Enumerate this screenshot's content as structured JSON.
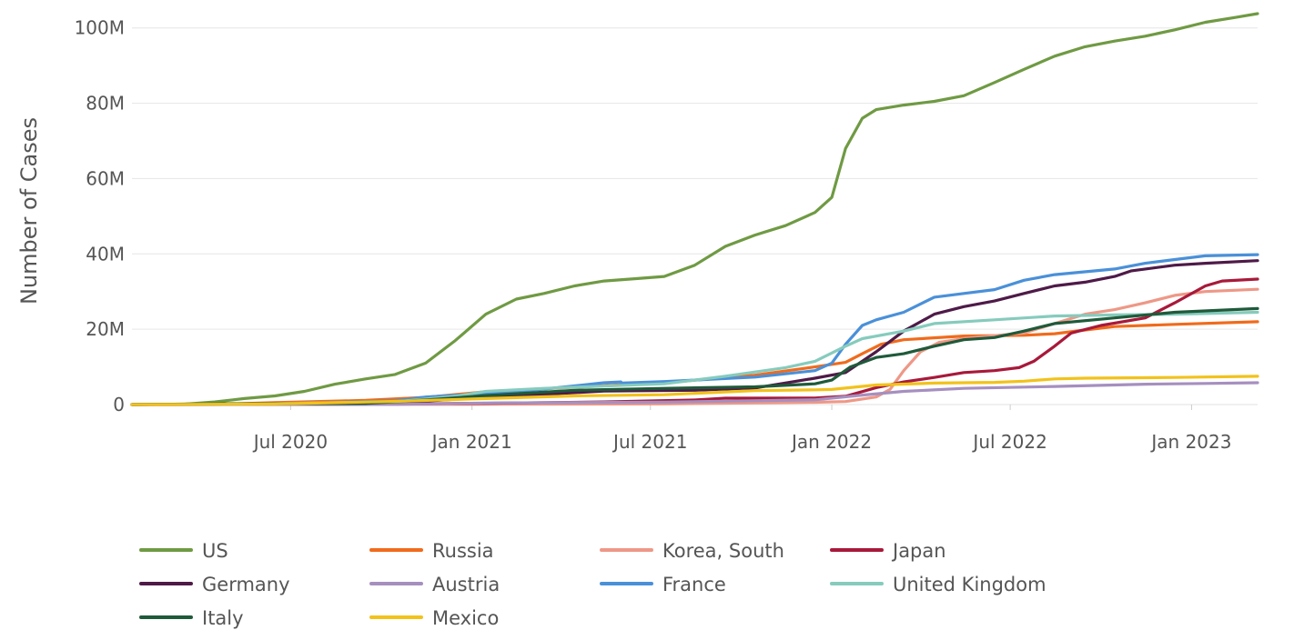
{
  "chart_data": {
    "type": "line",
    "title": "",
    "xlabel": "",
    "ylabel": "Number of Cases",
    "xlim": [
      "2020-01-22",
      "2023-03-09"
    ],
    "ylim": [
      0,
      105000000
    ],
    "y_ticks": [
      0,
      20000000,
      40000000,
      60000000,
      80000000,
      100000000
    ],
    "y_tick_labels": [
      "0",
      "20M",
      "40M",
      "60M",
      "80M",
      "100M"
    ],
    "x_ticks": [
      "2020-07-01",
      "2021-01-01",
      "2021-07-01",
      "2022-01-01",
      "2022-07-01",
      "2023-01-01"
    ],
    "x_tick_labels": [
      "Jul 2020",
      "Jan 2021",
      "Jul 2021",
      "Jan 2022",
      "Jul 2022",
      "Jan 2023"
    ],
    "grid": "horizontal",
    "legend_position": "bottom",
    "series": [
      {
        "name": "US",
        "color": "#6f9a43",
        "points": [
          [
            "2020-01-22",
            0
          ],
          [
            "2020-03-15",
            0.1
          ],
          [
            "2020-04-15",
            0.7
          ],
          [
            "2020-05-15",
            1.6
          ],
          [
            "2020-06-15",
            2.3
          ],
          [
            "2020-07-15",
            3.5
          ],
          [
            "2020-08-15",
            5.4
          ],
          [
            "2020-09-15",
            6.8
          ],
          [
            "2020-10-15",
            8.0
          ],
          [
            "2020-11-15",
            11.0
          ],
          [
            "2020-12-15",
            17.0
          ],
          [
            "2021-01-15",
            24.0
          ],
          [
            "2021-02-15",
            28.0
          ],
          [
            "2021-03-15",
            29.5
          ],
          [
            "2021-04-15",
            31.5
          ],
          [
            "2021-05-15",
            32.8
          ],
          [
            "2021-06-15",
            33.4
          ],
          [
            "2021-07-15",
            34.0
          ],
          [
            "2021-08-15",
            37.0
          ],
          [
            "2021-09-15",
            42.0
          ],
          [
            "2021-10-15",
            45.0
          ],
          [
            "2021-11-15",
            47.5
          ],
          [
            "2021-12-15",
            51.0
          ],
          [
            "2022-01-01",
            55.0
          ],
          [
            "2022-01-15",
            68.0
          ],
          [
            "2022-02-01",
            76.0
          ],
          [
            "2022-02-15",
            78.3
          ],
          [
            "2022-03-15",
            79.5
          ],
          [
            "2022-04-15",
            80.5
          ],
          [
            "2022-05-15",
            82.0
          ],
          [
            "2022-06-15",
            85.5
          ],
          [
            "2022-07-15",
            89.0
          ],
          [
            "2022-08-15",
            92.5
          ],
          [
            "2022-09-15",
            95.0
          ],
          [
            "2022-10-15",
            96.5
          ],
          [
            "2022-11-15",
            97.8
          ],
          [
            "2022-12-15",
            99.5
          ],
          [
            "2023-01-15",
            101.5
          ],
          [
            "2023-02-15",
            102.8
          ],
          [
            "2023-03-09",
            103.8
          ]
        ]
      },
      {
        "name": "Russia",
        "color": "#f06b1c",
        "points": [
          [
            "2020-01-22",
            0
          ],
          [
            "2020-04-15",
            0.02
          ],
          [
            "2020-06-15",
            0.5
          ],
          [
            "2020-09-15",
            1.1
          ],
          [
            "2020-11-15",
            1.9
          ],
          [
            "2021-01-15",
            3.4
          ],
          [
            "2021-04-15",
            4.6
          ],
          [
            "2021-07-15",
            5.8
          ],
          [
            "2021-10-15",
            7.8
          ],
          [
            "2021-12-15",
            10.0
          ],
          [
            "2022-01-15",
            11.2
          ],
          [
            "2022-02-01",
            13.5
          ],
          [
            "2022-02-20",
            16.0
          ],
          [
            "2022-03-15",
            17.2
          ],
          [
            "2022-05-15",
            18.2
          ],
          [
            "2022-07-15",
            18.4
          ],
          [
            "2022-08-15",
            18.8
          ],
          [
            "2022-09-15",
            19.8
          ],
          [
            "2022-10-15",
            20.7
          ],
          [
            "2022-12-15",
            21.3
          ],
          [
            "2023-03-09",
            22.0
          ]
        ]
      },
      {
        "name": "Korea, South",
        "color": "#ee9887",
        "points": [
          [
            "2020-01-22",
            0
          ],
          [
            "2021-01-15",
            0.07
          ],
          [
            "2021-07-15",
            0.18
          ],
          [
            "2021-12-15",
            0.6
          ],
          [
            "2022-01-15",
            0.8
          ],
          [
            "2022-02-15",
            2.0
          ],
          [
            "2022-03-01",
            4.0
          ],
          [
            "2022-03-15",
            9.0
          ],
          [
            "2022-04-01",
            14.0
          ],
          [
            "2022-04-20",
            16.5
          ],
          [
            "2022-05-15",
            17.5
          ],
          [
            "2022-06-15",
            18.3
          ],
          [
            "2022-07-15",
            19.0
          ],
          [
            "2022-08-15",
            21.5
          ],
          [
            "2022-09-15",
            24.0
          ],
          [
            "2022-10-15",
            25.2
          ],
          [
            "2022-11-15",
            27.0
          ],
          [
            "2022-12-15",
            29.0
          ],
          [
            "2023-01-15",
            30.0
          ],
          [
            "2023-03-09",
            30.6
          ]
        ]
      },
      {
        "name": "Japan",
        "color": "#a8193a",
        "points": [
          [
            "2020-01-22",
            0
          ],
          [
            "2020-08-15",
            0.05
          ],
          [
            "2021-01-15",
            0.35
          ],
          [
            "2021-05-15",
            0.7
          ],
          [
            "2021-08-15",
            1.2
          ],
          [
            "2021-09-15",
            1.7
          ],
          [
            "2021-12-15",
            1.75
          ],
          [
            "2022-01-15",
            2.2
          ],
          [
            "2022-02-15",
            4.5
          ],
          [
            "2022-03-15",
            6.0
          ],
          [
            "2022-04-15",
            7.2
          ],
          [
            "2022-05-15",
            8.5
          ],
          [
            "2022-06-15",
            9.0
          ],
          [
            "2022-07-10",
            9.8
          ],
          [
            "2022-07-25",
            11.5
          ],
          [
            "2022-08-15",
            15.5
          ],
          [
            "2022-09-01",
            19.0
          ],
          [
            "2022-10-01",
            21.0
          ],
          [
            "2022-11-15",
            23.0
          ],
          [
            "2022-12-15",
            27.0
          ],
          [
            "2023-01-15",
            31.5
          ],
          [
            "2023-02-01",
            32.8
          ],
          [
            "2023-03-09",
            33.3
          ]
        ]
      },
      {
        "name": "Germany",
        "color": "#4e1a48",
        "points": [
          [
            "2020-01-22",
            0
          ],
          [
            "2020-06-15",
            0.2
          ],
          [
            "2020-10-15",
            0.4
          ],
          [
            "2020-12-15",
            1.4
          ],
          [
            "2021-02-15",
            2.3
          ],
          [
            "2021-05-15",
            3.6
          ],
          [
            "2021-08-15",
            3.8
          ],
          [
            "2021-10-15",
            4.4
          ],
          [
            "2021-12-15",
            7.0
          ],
          [
            "2022-01-15",
            8.5
          ],
          [
            "2022-02-15",
            14.0
          ],
          [
            "2022-03-15",
            19.5
          ],
          [
            "2022-04-15",
            24.0
          ],
          [
            "2022-05-15",
            26.0
          ],
          [
            "2022-06-15",
            27.5
          ],
          [
            "2022-07-15",
            29.5
          ],
          [
            "2022-08-15",
            31.5
          ],
          [
            "2022-09-15",
            32.5
          ],
          [
            "2022-10-15",
            34.0
          ],
          [
            "2022-11-01",
            35.5
          ],
          [
            "2022-12-15",
            37.0
          ],
          [
            "2023-01-15",
            37.5
          ],
          [
            "2023-03-09",
            38.2
          ]
        ]
      },
      {
        "name": "Austria",
        "color": "#a68fbf",
        "points": [
          [
            "2020-01-22",
            0
          ],
          [
            "2020-10-15",
            0.05
          ],
          [
            "2021-01-15",
            0.4
          ],
          [
            "2021-07-15",
            0.65
          ],
          [
            "2021-12-15",
            1.25
          ],
          [
            "2022-02-01",
            2.5
          ],
          [
            "2022-03-15",
            3.5
          ],
          [
            "2022-05-15",
            4.3
          ],
          [
            "2022-08-15",
            4.8
          ],
          [
            "2022-11-15",
            5.4
          ],
          [
            "2023-01-15",
            5.6
          ],
          [
            "2023-03-09",
            5.8
          ]
        ]
      },
      {
        "name": "France",
        "color": "#4a90d9",
        "points": [
          [
            "2020-01-22",
            0
          ],
          [
            "2020-06-15",
            0.16
          ],
          [
            "2020-10-15",
            1.0
          ],
          [
            "2020-11-15",
            2.0
          ],
          [
            "2021-01-15",
            2.9
          ],
          [
            "2021-03-15",
            4.1
          ],
          [
            "2021-05-15",
            5.8
          ],
          [
            "2021-06-01",
            6.0
          ],
          [
            "2021-06-02",
            5.7
          ],
          [
            "2021-07-15",
            6.1
          ],
          [
            "2021-10-15",
            7.3
          ],
          [
            "2021-12-15",
            9.0
          ],
          [
            "2022-01-01",
            11.0
          ],
          [
            "2022-01-15",
            16.0
          ],
          [
            "2022-02-01",
            21.0
          ],
          [
            "2022-02-15",
            22.5
          ],
          [
            "2022-03-15",
            24.5
          ],
          [
            "2022-04-15",
            28.5
          ],
          [
            "2022-05-15",
            29.5
          ],
          [
            "2022-06-15",
            30.5
          ],
          [
            "2022-07-15",
            33.0
          ],
          [
            "2022-08-15",
            34.5
          ],
          [
            "2022-10-15",
            36.0
          ],
          [
            "2022-11-15",
            37.5
          ],
          [
            "2022-12-15",
            38.5
          ],
          [
            "2023-01-15",
            39.5
          ],
          [
            "2023-03-09",
            39.8
          ]
        ]
      },
      {
        "name": "United Kingdom",
        "color": "#86cbbd",
        "points": [
          [
            "2020-01-22",
            0
          ],
          [
            "2020-06-15",
            0.3
          ],
          [
            "2020-10-15",
            0.7
          ],
          [
            "2020-12-15",
            2.2
          ],
          [
            "2021-01-15",
            3.5
          ],
          [
            "2021-03-15",
            4.3
          ],
          [
            "2021-07-15",
            5.5
          ],
          [
            "2021-09-15",
            7.5
          ],
          [
            "2021-11-15",
            9.8
          ],
          [
            "2021-12-15",
            11.5
          ],
          [
            "2022-01-15",
            15.5
          ],
          [
            "2022-02-01",
            17.5
          ],
          [
            "2022-03-15",
            19.5
          ],
          [
            "2022-04-15",
            21.5
          ],
          [
            "2022-06-15",
            22.5
          ],
          [
            "2022-08-15",
            23.5
          ],
          [
            "2022-10-15",
            23.8
          ],
          [
            "2022-12-15",
            24.0
          ],
          [
            "2023-03-09",
            24.5
          ]
        ]
      },
      {
        "name": "Italy",
        "color": "#1f5a3a",
        "points": [
          [
            "2020-01-22",
            0
          ],
          [
            "2020-04-15",
            0.2
          ],
          [
            "2020-09-15",
            0.3
          ],
          [
            "2020-11-15",
            1.2
          ],
          [
            "2021-01-15",
            2.4
          ],
          [
            "2021-04-15",
            3.8
          ],
          [
            "2021-07-15",
            4.3
          ],
          [
            "2021-10-15",
            4.7
          ],
          [
            "2021-12-15",
            5.5
          ],
          [
            "2022-01-01",
            6.5
          ],
          [
            "2022-01-20",
            10.0
          ],
          [
            "2022-02-15",
            12.5
          ],
          [
            "2022-03-15",
            13.5
          ],
          [
            "2022-04-15",
            15.5
          ],
          [
            "2022-05-15",
            17.2
          ],
          [
            "2022-06-15",
            17.8
          ],
          [
            "2022-07-15",
            19.5
          ],
          [
            "2022-08-15",
            21.5
          ],
          [
            "2022-10-15",
            23.0
          ],
          [
            "2022-12-15",
            24.5
          ],
          [
            "2023-03-09",
            25.5
          ]
        ]
      },
      {
        "name": "Mexico",
        "color": "#f2c21b",
        "points": [
          [
            "2020-01-22",
            0
          ],
          [
            "2020-06-15",
            0.15
          ],
          [
            "2020-10-15",
            0.85
          ],
          [
            "2021-01-15",
            1.6
          ],
          [
            "2021-04-15",
            2.3
          ],
          [
            "2021-07-15",
            2.6
          ],
          [
            "2021-10-15",
            3.7
          ],
          [
            "2021-12-15",
            3.9
          ],
          [
            "2022-01-01",
            4.0
          ],
          [
            "2022-02-15",
            5.2
          ],
          [
            "2022-04-15",
            5.7
          ],
          [
            "2022-06-15",
            5.9
          ],
          [
            "2022-07-15",
            6.2
          ],
          [
            "2022-08-15",
            6.8
          ],
          [
            "2022-09-15",
            7.0
          ],
          [
            "2022-12-15",
            7.2
          ],
          [
            "2023-03-09",
            7.5
          ]
        ]
      }
    ]
  }
}
